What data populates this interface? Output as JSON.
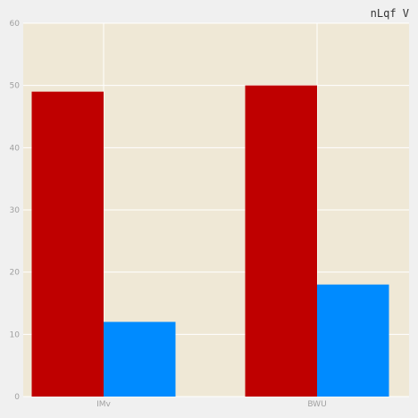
{
  "chart_data": {
    "type": "bar",
    "title": "nLqf V",
    "xlabel": "",
    "ylabel": "",
    "categories": [
      "IMv",
      "BWU"
    ],
    "series": [
      {
        "values": [
          49,
          50
        ],
        "color": "#bf0000"
      },
      {
        "values": [
          12,
          18
        ],
        "color": "#008bff"
      }
    ],
    "ylim": [
      0,
      60
    ],
    "yticks": [
      0,
      10,
      20,
      30,
      40,
      50,
      60
    ],
    "grid": true,
    "legend": "none",
    "colors": {
      "plot_bg": "#efe8d6",
      "grid": "#ffffff",
      "figure_bg": "#f0f0f0"
    }
  }
}
